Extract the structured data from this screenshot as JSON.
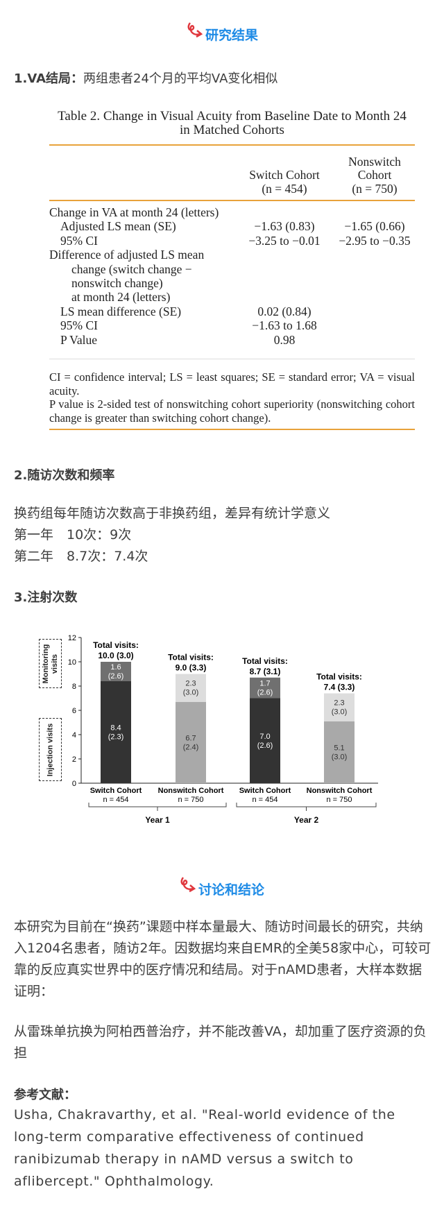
{
  "header_1": "研究结果",
  "va": {
    "title": "1.VA结局：",
    "text": "两组患者24个月的平均VA变化相似"
  },
  "table": {
    "title": "Table 2. Change in Visual Acuity from Baseline Date to Month 24 in Matched Cohorts",
    "columns": [
      {
        "name": "Switch Cohort",
        "n": "(n = 454)"
      },
      {
        "name": "Nonswitch Cohort",
        "n": "(n = 750)"
      }
    ],
    "rows": [
      {
        "label": [
          "Change in VA at month 24 (letters)"
        ]
      },
      {
        "label": [
          "Adjusted LS mean (SE)"
        ],
        "cells": [
          "−1.63 (0.83)",
          "−1.65 (0.66)"
        ]
      },
      {
        "label": [
          "95% CI"
        ],
        "cells": [
          "−3.25 to −0.01",
          "−2.95 to −0.35"
        ]
      },
      {
        "label": [
          "Difference of adjusted LS mean",
          "change (switch change −",
          "nonswitch change)",
          "at month 24 (letters)"
        ]
      },
      {
        "label": [
          "LS mean difference (SE)"
        ],
        "cells": [
          "0.02 (0.84)"
        ]
      },
      {
        "label": [
          "95% CI"
        ],
        "cells": [
          "−1.63 to 1.68"
        ]
      },
      {
        "label": [
          "P Value"
        ],
        "cells": [
          "0.98"
        ]
      }
    ],
    "notes": [
      "CI = confidence interval; LS = least squares; SE = standard error; VA = visual acuity.",
      "P value is 2-sided test of nonswitching cohort superiority (nonswitching cohort change is greater than switching cohort change)."
    ]
  },
  "visits": {
    "title": "2.随访次数和频率",
    "lines": [
      "换药组每年随访次数高于非换药组，差异有统计学意义",
      "第一年　10次：9次",
      "第二年　8.7次：7.4次"
    ]
  },
  "injections": {
    "title": "3.注射次数"
  },
  "chart_data": {
    "type": "stacked_bar",
    "categories": [
      "Switch Cohort",
      "Nonswitch Cohort",
      "Switch Cohort",
      "Nonswitch Cohort"
    ],
    "n_labels": [
      "n = 454",
      "n = 750",
      "n = 454",
      "n = 750"
    ],
    "groups": [
      "Year 1",
      "Year 2"
    ],
    "series": [
      {
        "name": "Injection visits",
        "color": [
          "#333333",
          "#a9a9a9",
          "#333333",
          "#a9a9a9"
        ],
        "values": [
          8.4,
          6.7,
          7.0,
          5.1
        ],
        "value_labels": [
          "8.4",
          "6.7",
          "7.0",
          "5.1"
        ],
        "error_labels": [
          "(2.3)",
          "(2.4)",
          "(2.6)",
          "(3.0)"
        ]
      },
      {
        "name": "Monitoring visits",
        "color": [
          "#707070",
          "#dddddd",
          "#707070",
          "#dddddd"
        ],
        "values": [
          1.6,
          2.3,
          1.7,
          2.3
        ],
        "value_labels": [
          "1.6",
          "2.3",
          "1.7",
          "2.3"
        ],
        "error_labels": [
          "(2.6)",
          "(3.0)",
          "(2.6)",
          "(3.0)"
        ]
      }
    ],
    "totals": {
      "label": "Total visits:",
      "values": [
        10.0,
        9.0,
        8.7,
        7.4
      ],
      "value_labels": [
        "10.0 (3.0)",
        "9.0 (3.3)",
        "8.7 (3.1)",
        "7.4 (3.3)"
      ]
    },
    "ylim": [
      0,
      12
    ],
    "yticks": [
      0,
      2,
      4,
      6,
      8,
      10,
      12
    ]
  },
  "header_2": "讨论和结论",
  "discussion": [
    "本研究为目前在“换药”课题中样本量最大、随访时间最长的研究，共纳入1204名患者，随访2年。因数据均来自EMR的全美58家中心，可较可靠的反应真实世界中的医疗情况和结局。对于nAMD患者，大样本数据证明：",
    "从雷珠单抗换为阿柏西普治疗，并不能改善VA，却加重了医疗资源的负担"
  ],
  "references": {
    "title": "参考文献：",
    "text": "Usha, Chakravarthy, et al. \"Real-world evidence of the long-term comparative effectiveness of continued ranibizumab therapy in nAMD versus a switch to aflibercept.\" Ophthalmology."
  }
}
